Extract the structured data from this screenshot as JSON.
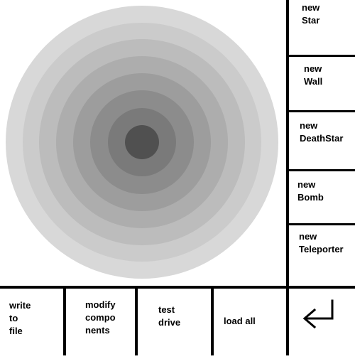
{
  "side_buttons": [
    {
      "line1": "new",
      "line2": "Star"
    },
    {
      "line1": "new",
      "line2": "Wall"
    },
    {
      "line1": "new",
      "line2": "DeathStar"
    },
    {
      "line1": "new",
      "line2": "Bomb"
    },
    {
      "line1": "new",
      "line2": "Teleporter"
    }
  ],
  "bottom_buttons": {
    "write_to_file": {
      "line1": "write",
      "line2": "to",
      "line3": "file"
    },
    "modify_components": {
      "line1": "modify",
      "line2": "compo",
      "line3": "nents"
    },
    "test_drive": {
      "line1": "test",
      "line2": "drive"
    },
    "load_all": {
      "label": "load all"
    }
  },
  "enter_icon": "return-arrow-icon",
  "colors": {
    "rings": [
      "#d8d8d8",
      "#cbcbcb",
      "#bcbcbc",
      "#adadad",
      "#9d9d9d",
      "#8c8c8c",
      "#7a7a7a",
      "#686868",
      "#505050"
    ],
    "lines": "#000000",
    "background": "#ffffff"
  }
}
